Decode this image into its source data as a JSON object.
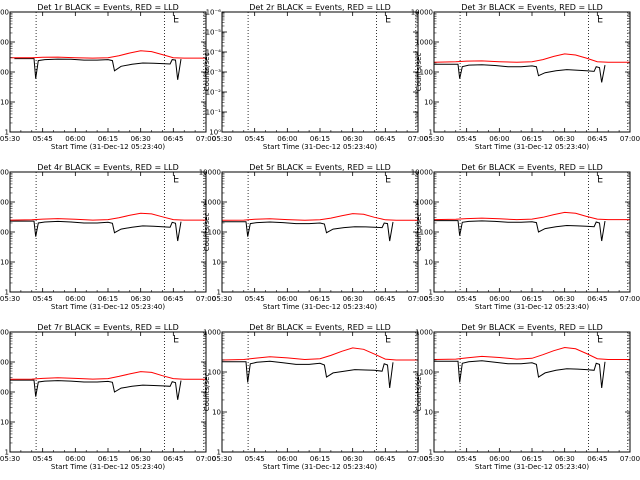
{
  "chart_data": {
    "type": "line",
    "layout": "3x3 grid",
    "x_tick_labels": [
      "05:30",
      "05:45",
      "06:00",
      "06:15",
      "06:30",
      "06:45",
      "07:00"
    ],
    "x_tick_minutes": [
      330,
      345,
      360,
      375,
      390,
      405,
      420
    ],
    "xlim_minutes": [
      330,
      420
    ],
    "xlabel": "Start Time (31-Dec-12 05:23:40)",
    "ylabel": "Counts/sec",
    "vertical_markers_minutes": [
      342,
      401,
      419
    ],
    "colors": {
      "events": "#000000",
      "lld": "#ff0000"
    },
    "panels": [
      {
        "title": "Det 1r BLACK = Events, RED = LLD",
        "yscale": "log",
        "ylim": [
          1,
          10000
        ],
        "y_tick_labels": [
          "1",
          "10",
          "100",
          "1000",
          "10000"
        ],
        "series": [
          {
            "name": "Events",
            "x": [
              332,
              336,
              341,
              341.8,
              343,
              346,
              352,
              358,
              364,
              370,
              375,
              377,
              378,
              381,
              386,
              391,
              396,
              400,
              403.5,
              404.5,
              406,
              407,
              408.5
            ],
            "y": [
              280,
              280,
              280,
              60,
              240,
              260,
              270,
              265,
              250,
              250,
              260,
              240,
              110,
              155,
              180,
              200,
              195,
              190,
              185,
              260,
              250,
              55,
              270
            ]
          },
          {
            "name": "LLD",
            "x": [
              330,
              340,
              345,
              352,
              360,
              368,
              375,
              380,
              385,
              390,
              395,
              400,
              405,
              410,
              420
            ],
            "y": [
              300,
              300,
              310,
              315,
              300,
              290,
              300,
              350,
              430,
              510,
              480,
              380,
              300,
              290,
              290
            ]
          }
        ]
      },
      {
        "title": "Det 2r BLACK = Events, RED = LLD",
        "yscale": "log",
        "ylim": [
          1,
          1e-06
        ],
        "y_tick_labels": [
          "10⁰",
          "10⁻¹",
          "10⁻²",
          "10⁻³",
          "10⁻⁴",
          "10⁻⁵",
          "10⁻⁶"
        ],
        "series": [
          {
            "name": "Events",
            "x": [],
            "y": []
          },
          {
            "name": "LLD",
            "x": [],
            "y": []
          }
        ]
      },
      {
        "title": "Det 3r BLACK = Events, RED = LLD",
        "yscale": "log",
        "ylim": [
          1,
          10000
        ],
        "y_tick_labels": [
          "1",
          "10",
          "100",
          "1000",
          "10000"
        ],
        "series": [
          {
            "name": "Events",
            "x": [
              330,
              336,
              341,
              341.8,
              343,
              346,
              352,
              358,
              364,
              370,
              375,
              377,
              378,
              381,
              386,
              391,
              396,
              400,
              403.5,
              404.5,
              406,
              407,
              408.5
            ],
            "y": [
              180,
              180,
              180,
              60,
              150,
              170,
              175,
              165,
              150,
              150,
              160,
              150,
              75,
              95,
              110,
              120,
              115,
              110,
              105,
              150,
              140,
              45,
              170
            ]
          },
          {
            "name": "LLD",
            "x": [
              330,
              340,
              345,
              352,
              360,
              368,
              375,
              380,
              385,
              390,
              395,
              400,
              405,
              410,
              420
            ],
            "y": [
              210,
              220,
              230,
              235,
              220,
              210,
              220,
              260,
              330,
              400,
              370,
              290,
              220,
              210,
              210
            ]
          }
        ]
      },
      {
        "title": "Det 4r BLACK = Events, RED = LLD",
        "yscale": "log",
        "ylim": [
          1,
          10000
        ],
        "y_tick_labels": [
          "1",
          "10",
          "100",
          "1000",
          "10000"
        ],
        "series": [
          {
            "name": "Events",
            "x": [
              330,
              336,
              341,
              341.8,
              343,
              346,
              352,
              358,
              364,
              370,
              375,
              377,
              378,
              381,
              386,
              391,
              396,
              400,
              403.5,
              404.5,
              406,
              407,
              408.5
            ],
            "y": [
              230,
              230,
              230,
              70,
              200,
              215,
              225,
              215,
              200,
              200,
              210,
              195,
              95,
              125,
              145,
              160,
              155,
              150,
              145,
              210,
              195,
              50,
              220
            ]
          },
          {
            "name": "LLD",
            "x": [
              330,
              340,
              345,
              352,
              360,
              368,
              375,
              380,
              385,
              390,
              395,
              400,
              405,
              410,
              420
            ],
            "y": [
              250,
              255,
              270,
              280,
              265,
              250,
              260,
              300,
              360,
              420,
              400,
              320,
              260,
              250,
              250
            ]
          }
        ]
      },
      {
        "title": "Det 5r BLACK = Events, RED = LLD",
        "yscale": "log",
        "ylim": [
          1,
          10000
        ],
        "y_tick_labels": [
          "1",
          "10",
          "100",
          "1000",
          "10000"
        ],
        "series": [
          {
            "name": "Events",
            "x": [
              330,
              336,
              341,
              341.8,
              343,
              346,
              352,
              358,
              364,
              370,
              375,
              377,
              378,
              381,
              386,
              391,
              396,
              400,
              403.5,
              404.5,
              406,
              407,
              408.5
            ],
            "y": [
              220,
              220,
              220,
              70,
              190,
              205,
              215,
              205,
              190,
              190,
              200,
              185,
              95,
              125,
              140,
              150,
              148,
              145,
              140,
              200,
              190,
              50,
              215
            ]
          },
          {
            "name": "LLD",
            "x": [
              330,
              340,
              345,
              352,
              360,
              368,
              375,
              380,
              385,
              390,
              395,
              400,
              405,
              410,
              420
            ],
            "y": [
              245,
              250,
              265,
              275,
              260,
              245,
              255,
              290,
              350,
              410,
              390,
              310,
              255,
              245,
              245
            ]
          }
        ]
      },
      {
        "title": "Det 6r BLACK = Events, RED = LLD",
        "yscale": "log",
        "ylim": [
          1,
          10000
        ],
        "y_tick_labels": [
          "1",
          "10",
          "100",
          "1000",
          "10000"
        ],
        "series": [
          {
            "name": "Events",
            "x": [
              330,
              336,
              341,
              341.8,
              343,
              346,
              352,
              358,
              364,
              370,
              375,
              377,
              378,
              381,
              386,
              391,
              396,
              400,
              403.5,
              404.5,
              406,
              407,
              408.5
            ],
            "y": [
              240,
              240,
              240,
              75,
              210,
              225,
              235,
              225,
              210,
              210,
              220,
              205,
              100,
              130,
              150,
              165,
              160,
              155,
              150,
              215,
              200,
              50,
              230
            ]
          },
          {
            "name": "LLD",
            "x": [
              330,
              340,
              345,
              352,
              360,
              368,
              375,
              380,
              385,
              390,
              395,
              400,
              405,
              410,
              420
            ],
            "y": [
              260,
              265,
              280,
              290,
              275,
              260,
              270,
              310,
              380,
              450,
              420,
              330,
              270,
              260,
              260
            ]
          }
        ]
      },
      {
        "title": "Det 7r BLACK = Events, RED = LLD",
        "yscale": "log",
        "ylim": [
          1,
          10000
        ],
        "y_tick_labels": [
          "1",
          "10",
          "100",
          "1000",
          "10000"
        ],
        "series": [
          {
            "name": "Events",
            "x": [
              330,
              336,
              341,
              341.8,
              343,
              346,
              352,
              358,
              364,
              370,
              375,
              377,
              378,
              381,
              386,
              391,
              396,
              400,
              403.5,
              404.5,
              406,
              407,
              408.5
            ],
            "y": [
              250,
              250,
              250,
              70,
              215,
              230,
              240,
              230,
              215,
              215,
              225,
              210,
              100,
              135,
              155,
              170,
              165,
              160,
              155,
              220,
              205,
              55,
              240
            ]
          },
          {
            "name": "LLD",
            "x": [
              330,
              340,
              345,
              352,
              360,
              368,
              375,
              380,
              385,
              390,
              395,
              400,
              405,
              410,
              420
            ],
            "y": [
              265,
              270,
              285,
              300,
              285,
              270,
              280,
              330,
              400,
              480,
              450,
              350,
              280,
              265,
              265
            ]
          }
        ]
      },
      {
        "title": "Det 8r BLACK = Events, RED = LLD",
        "yscale": "log",
        "ylim": [
          1,
          1000
        ],
        "y_tick_labels": [
          "1",
          "10",
          "100",
          "1000"
        ],
        "series": [
          {
            "name": "Events",
            "x": [
              330,
              336,
              341,
              341.8,
              343,
              346,
              352,
              358,
              364,
              370,
              375,
              377,
              378,
              381,
              386,
              391,
              396,
              400,
              403.5,
              404.5,
              406,
              407,
              408.5
            ],
            "y": [
              180,
              180,
              180,
              55,
              160,
              175,
              185,
              170,
              155,
              155,
              165,
              150,
              75,
              95,
              105,
              115,
              112,
              110,
              105,
              160,
              150,
              40,
              175
            ]
          },
          {
            "name": "LLD",
            "x": [
              330,
              340,
              345,
              352,
              360,
              368,
              375,
              380,
              385,
              390,
              395,
              400,
              405,
              410,
              420
            ],
            "y": [
              200,
              205,
              220,
              240,
              225,
              205,
              215,
              260,
              330,
              400,
              370,
              280,
              210,
              200,
              200
            ]
          }
        ]
      },
      {
        "title": "Det 9r BLACK = Events, RED = LLD",
        "yscale": "log",
        "ylim": [
          1,
          1000
        ],
        "y_tick_labels": [
          "1",
          "10",
          "100",
          "1000"
        ],
        "series": [
          {
            "name": "Events",
            "x": [
              330,
              336,
              341,
              341.8,
              343,
              346,
              352,
              358,
              364,
              370,
              375,
              377,
              378,
              381,
              386,
              391,
              396,
              400,
              403.5,
              404.5,
              406,
              407,
              408.5
            ],
            "y": [
              185,
              185,
              185,
              55,
              165,
              180,
              190,
              175,
              160,
              160,
              170,
              155,
              75,
              95,
              110,
              120,
              118,
              115,
              110,
              165,
              155,
              40,
              180
            ]
          },
          {
            "name": "LLD",
            "x": [
              330,
              340,
              345,
              352,
              360,
              368,
              375,
              380,
              385,
              390,
              395,
              400,
              405,
              410,
              420
            ],
            "y": [
              205,
              210,
              225,
              245,
              230,
              210,
              220,
              270,
              340,
              410,
              380,
              290,
              215,
              205,
              205
            ]
          }
        ]
      }
    ]
  }
}
